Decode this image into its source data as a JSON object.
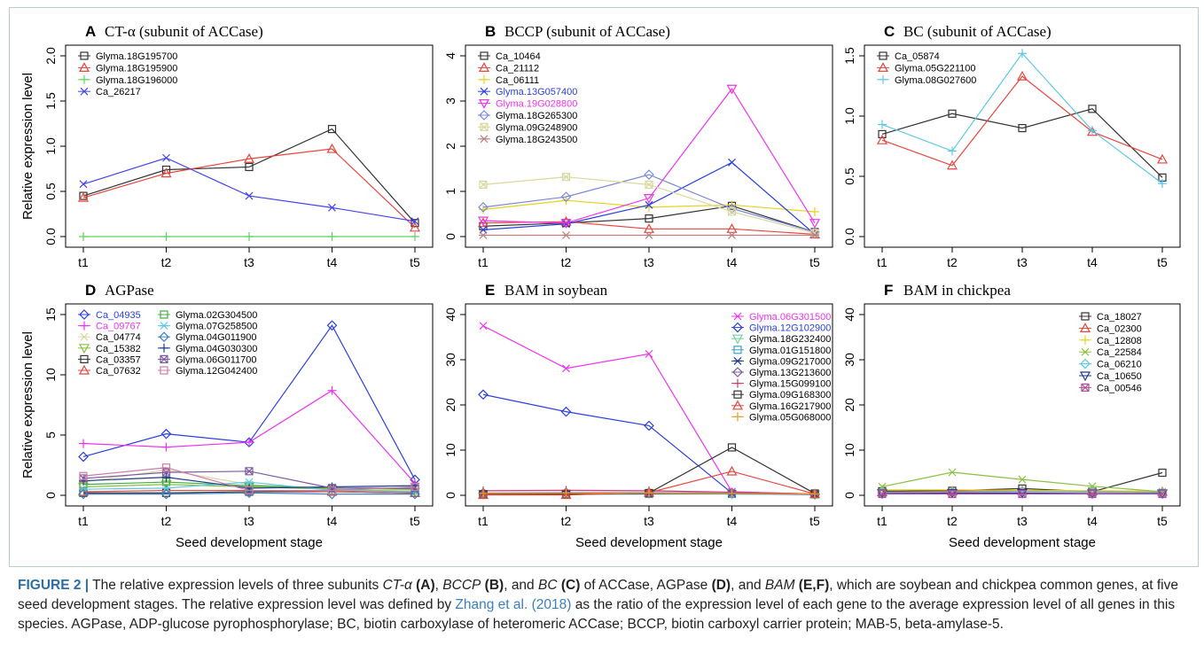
{
  "figure": {
    "caption": {
      "label": "FIGURE 2 |",
      "segments": [
        {
          "t": " The relative expression levels of three subunits "
        },
        {
          "t": "CT-α",
          "i": true
        },
        {
          "t": " "
        },
        {
          "t": "(A)",
          "b": true
        },
        {
          "t": ", "
        },
        {
          "t": "BCCP",
          "i": true
        },
        {
          "t": " "
        },
        {
          "t": "(B)",
          "b": true
        },
        {
          "t": ", and "
        },
        {
          "t": "BC",
          "i": true
        },
        {
          "t": " "
        },
        {
          "t": "(C)",
          "b": true
        },
        {
          "t": " of ACCase, AGPase "
        },
        {
          "t": "(D)",
          "b": true
        },
        {
          "t": ", and "
        },
        {
          "t": "BAM",
          "i": true
        },
        {
          "t": " "
        },
        {
          "t": "(E,F)",
          "b": true
        },
        {
          "t": ", which are soybean and chickpea common genes, at five seed development stages. The relative expression level was defined by "
        },
        {
          "t": "Zhang et al. (2018)",
          "ref": true
        },
        {
          "t": " as the ratio of the expression level of each gene to the average expression level of all genes in this species. AGPase, ADP-glucose pyrophosphorylase; BC, biotin carboxylase of heteromeric ACCase; BCCP, biotin carboxyl carrier protein; MAB-5, beta-amylase-5."
        }
      ]
    }
  },
  "chart_data": [
    {
      "panel": "A",
      "title": "CT-α (subunit of ACCase)",
      "type": "line",
      "categories": [
        "t1",
        "t2",
        "t3",
        "t4",
        "t5"
      ],
      "ylim": [
        0,
        2.0
      ],
      "yticks": [
        "0.0",
        "0.5",
        "1.0",
        "1.5",
        "2.0"
      ],
      "ylabel": "Relative expression level",
      "xlabel": "",
      "legend_position": "top-left",
      "series": [
        {
          "name": "Glyma.18G195700",
          "color": "#333333",
          "marker": "square",
          "values": [
            0.45,
            0.74,
            0.77,
            1.19,
            0.15
          ]
        },
        {
          "name": "Glyma.18G195900",
          "color": "#e8453c",
          "marker": "triangle",
          "values": [
            0.43,
            0.7,
            0.86,
            0.97,
            0.1
          ]
        },
        {
          "name": "Glyma.18G196000",
          "color": "#5fd35f",
          "marker": "plus",
          "values": [
            0.0,
            0.0,
            0.0,
            0.0,
            0.0
          ]
        },
        {
          "name": "Ca_26217",
          "color": "#4444ee",
          "marker": "x",
          "values": [
            0.58,
            0.87,
            0.45,
            0.32,
            0.17
          ]
        }
      ]
    },
    {
      "panel": "B",
      "title": "BCCP (subunit of ACCase)",
      "type": "line",
      "categories": [
        "t1",
        "t2",
        "t3",
        "t4",
        "t5"
      ],
      "ylim": [
        0,
        4
      ],
      "yticks": [
        "0",
        "1",
        "2",
        "3",
        "4"
      ],
      "ylabel": "",
      "xlabel": "",
      "legend_position": "top-left",
      "series": [
        {
          "name": "Ca_10464",
          "color": "#333333",
          "marker": "square",
          "values": [
            0.23,
            0.3,
            0.4,
            0.68,
            0.1
          ]
        },
        {
          "name": "Ca_21112",
          "color": "#e8453c",
          "marker": "triangle",
          "values": [
            0.3,
            0.33,
            0.17,
            0.17,
            0.05
          ]
        },
        {
          "name": "Ca_06111",
          "color": "#e6d21e",
          "marker": "plus",
          "values": [
            0.6,
            0.8,
            0.65,
            0.7,
            0.55
          ]
        },
        {
          "name": "Glyma.13G057400",
          "color": "#2a3fe0",
          "marker": "x",
          "values": [
            0.15,
            0.28,
            0.7,
            1.64,
            0.05
          ],
          "label_color": "#2a3fe0"
        },
        {
          "name": "Glyma.19G028800",
          "color": "#ee33ee",
          "marker": "triangle-down",
          "values": [
            0.35,
            0.3,
            0.85,
            3.27,
            0.3
          ],
          "label_color": "#ee33ee"
        },
        {
          "name": "Glyma.18G265300",
          "color": "#7a8ad6",
          "marker": "diamond",
          "values": [
            0.65,
            0.88,
            1.37,
            0.62,
            0.1
          ]
        },
        {
          "name": "Glyma.09G248900",
          "color": "#d8d8a0",
          "marker": "square-x",
          "values": [
            1.15,
            1.32,
            1.15,
            0.55,
            0.08
          ]
        },
        {
          "name": "Glyma.18G243500",
          "color": "#c08080",
          "marker": "asterisk",
          "values": [
            0.03,
            0.03,
            0.03,
            0.03,
            0.03
          ]
        }
      ]
    },
    {
      "panel": "C",
      "title": "BC (subunit of ACCase)",
      "type": "line",
      "categories": [
        "t1",
        "t2",
        "t3",
        "t4",
        "t5"
      ],
      "ylim": [
        0,
        1.5
      ],
      "yticks": [
        "0.0",
        "0.5",
        "1.0",
        "1.5"
      ],
      "ylabel": "",
      "xlabel": "",
      "legend_position": "top-left",
      "series": [
        {
          "name": "Ca_05874",
          "color": "#333333",
          "marker": "square",
          "values": [
            0.85,
            1.02,
            0.9,
            1.06,
            0.49
          ]
        },
        {
          "name": "Glyma.05G221100",
          "color": "#e8453c",
          "marker": "triangle",
          "values": [
            0.8,
            0.59,
            1.33,
            0.87,
            0.64
          ]
        },
        {
          "name": "Glyma.08G027600",
          "color": "#5cc8e8",
          "marker": "plus",
          "values": [
            0.93,
            0.71,
            1.52,
            0.88,
            0.44
          ]
        }
      ]
    },
    {
      "panel": "D",
      "title": "AGPase",
      "type": "line",
      "categories": [
        "t1",
        "t2",
        "t3",
        "t4",
        "t5"
      ],
      "ylim": [
        0,
        15
      ],
      "yticks": [
        "0",
        "5",
        "10",
        "15"
      ],
      "ylabel": "Relative expression level",
      "xlabel": "Seed development stage",
      "legend_position": "top-left",
      "series": [
        {
          "name": "Ca_04935",
          "color": "#2a3fe0",
          "marker": "diamond",
          "values": [
            3.2,
            5.1,
            4.4,
            14.1,
            1.3
          ],
          "label_color": "#2a3fe0"
        },
        {
          "name": "Ca_09767",
          "color": "#ee33ee",
          "marker": "plus",
          "values": [
            4.3,
            4.0,
            4.4,
            8.7,
            1.0
          ],
          "label_color": "#ee33ee"
        },
        {
          "name": "Ca_04774",
          "color": "#d8d8a0",
          "marker": "x",
          "values": [
            1.1,
            2.1,
            0.9,
            0.5,
            0.4
          ]
        },
        {
          "name": "Ca_15382",
          "color": "#8ac040",
          "marker": "triangle-down",
          "values": [
            0.7,
            0.9,
            0.7,
            0.5,
            0.3
          ]
        },
        {
          "name": "Ca_03357",
          "color": "#333333",
          "marker": "square",
          "values": [
            0.2,
            0.2,
            0.3,
            0.3,
            0.2
          ]
        },
        {
          "name": "Ca_07632",
          "color": "#e8453c",
          "marker": "triangle",
          "values": [
            0.3,
            0.4,
            0.4,
            0.3,
            0.2
          ]
        },
        {
          "name": "Glyma.02G304500",
          "color": "#44aa44",
          "marker": "square",
          "values": [
            0.9,
            1.1,
            0.8,
            0.6,
            0.5
          ]
        },
        {
          "name": "Glyma.07G258500",
          "color": "#5cc8e8",
          "marker": "asterisk",
          "values": [
            0.5,
            0.6,
            1.1,
            0.4,
            0.3
          ]
        },
        {
          "name": "Glyma.04G011900",
          "color": "#3a7fc0",
          "marker": "diamond",
          "values": [
            0.1,
            0.1,
            0.2,
            0.1,
            0.1
          ]
        },
        {
          "name": "Glyma.04G030300",
          "color": "#1e3a8a",
          "marker": "plus",
          "values": [
            1.2,
            1.5,
            0.6,
            0.7,
            0.8
          ]
        },
        {
          "name": "Glyma.06G011700",
          "color": "#7a5aa0",
          "marker": "square-x",
          "values": [
            1.4,
            1.9,
            2.0,
            0.6,
            0.6
          ]
        },
        {
          "name": "Glyma.12G042400",
          "color": "#d07aa8",
          "marker": "square",
          "values": [
            1.6,
            2.3,
            0.4,
            0.4,
            0.7
          ]
        }
      ]
    },
    {
      "panel": "E",
      "title": "BAM in soybean",
      "type": "line",
      "categories": [
        "t1",
        "t2",
        "t3",
        "t4",
        "t5"
      ],
      "ylim": [
        0,
        40
      ],
      "yticks": [
        "0",
        "10",
        "20",
        "30",
        "40"
      ],
      "ylabel": "",
      "xlabel": "Seed development stage",
      "legend_position": "top-right",
      "series": [
        {
          "name": "Glyma.06G301500",
          "color": "#ee33ee",
          "marker": "x",
          "values": [
            37.5,
            28.1,
            31.3,
            0.8,
            0.3
          ],
          "label_color": "#ee33ee"
        },
        {
          "name": "Glyma.12G102900",
          "color": "#2a3fe0",
          "marker": "diamond",
          "values": [
            22.3,
            18.5,
            15.4,
            0.5,
            0.2
          ],
          "label_color": "#2a3fe0"
        },
        {
          "name": "Glyma.18G232400",
          "color": "#6fcf9f",
          "marker": "triangle-down",
          "values": [
            0.3,
            0.3,
            0.4,
            0.3,
            0.2
          ]
        },
        {
          "name": "Glyma.01G151800",
          "color": "#3a9fd0",
          "marker": "square",
          "values": [
            0.2,
            0.2,
            0.3,
            0.3,
            0.2
          ]
        },
        {
          "name": "Glyma.09G217000",
          "color": "#1e3a8a",
          "marker": "asterisk",
          "values": [
            0.3,
            0.4,
            0.4,
            0.4,
            0.2
          ]
        },
        {
          "name": "Glyma.13G213600",
          "color": "#7a5aa0",
          "marker": "diamond",
          "values": [
            0.5,
            0.6,
            0.6,
            0.5,
            0.3
          ]
        },
        {
          "name": "Glyma.15G099100",
          "color": "#d03a6a",
          "marker": "plus",
          "values": [
            1.0,
            1.1,
            1.0,
            0.7,
            0.3
          ]
        },
        {
          "name": "Glyma.09G168300",
          "color": "#333333",
          "marker": "square",
          "values": [
            0.2,
            0.2,
            0.5,
            10.6,
            0.4
          ]
        },
        {
          "name": "Glyma.16G217900",
          "color": "#e8453c",
          "marker": "triangle",
          "values": [
            0.1,
            0.1,
            0.6,
            5.3,
            0.3
          ]
        },
        {
          "name": "Glyma.05G068000",
          "color": "#e8a020",
          "marker": "plus",
          "values": [
            0.4,
            0.5,
            0.5,
            0.4,
            0.3
          ]
        }
      ]
    },
    {
      "panel": "F",
      "title": "BAM in chickpea",
      "type": "line",
      "categories": [
        "t1",
        "t2",
        "t3",
        "t4",
        "t5"
      ],
      "ylim": [
        0,
        40
      ],
      "yticks": [
        "0",
        "10",
        "20",
        "30",
        "40"
      ],
      "ylabel": "",
      "xlabel": "Seed development stage",
      "legend_position": "top-right",
      "series": [
        {
          "name": "Ca_18027",
          "color": "#333333",
          "marker": "square",
          "values": [
            0.9,
            1.0,
            1.5,
            0.8,
            5.0
          ]
        },
        {
          "name": "Ca_02300",
          "color": "#e8453c",
          "marker": "triangle",
          "values": [
            0.7,
            0.9,
            1.0,
            0.9,
            0.8
          ]
        },
        {
          "name": "Ca_12808",
          "color": "#e6d21e",
          "marker": "plus",
          "values": [
            1.2,
            1.2,
            1.1,
            1.0,
            0.9
          ]
        },
        {
          "name": "Ca_22584",
          "color": "#8ac040",
          "marker": "x",
          "values": [
            1.9,
            5.1,
            3.5,
            2.0,
            0.8
          ]
        },
        {
          "name": "Ca_06210",
          "color": "#5cc8e8",
          "marker": "diamond",
          "values": [
            0.6,
            0.7,
            0.8,
            0.7,
            0.6
          ]
        },
        {
          "name": "Ca_10650",
          "color": "#1e3a8a",
          "marker": "triangle-down",
          "values": [
            0.4,
            0.5,
            0.5,
            0.4,
            0.4
          ]
        },
        {
          "name": "Ca_00546",
          "color": "#b050a0",
          "marker": "square-x",
          "values": [
            0.3,
            0.3,
            0.3,
            0.3,
            0.3
          ]
        }
      ]
    }
  ]
}
